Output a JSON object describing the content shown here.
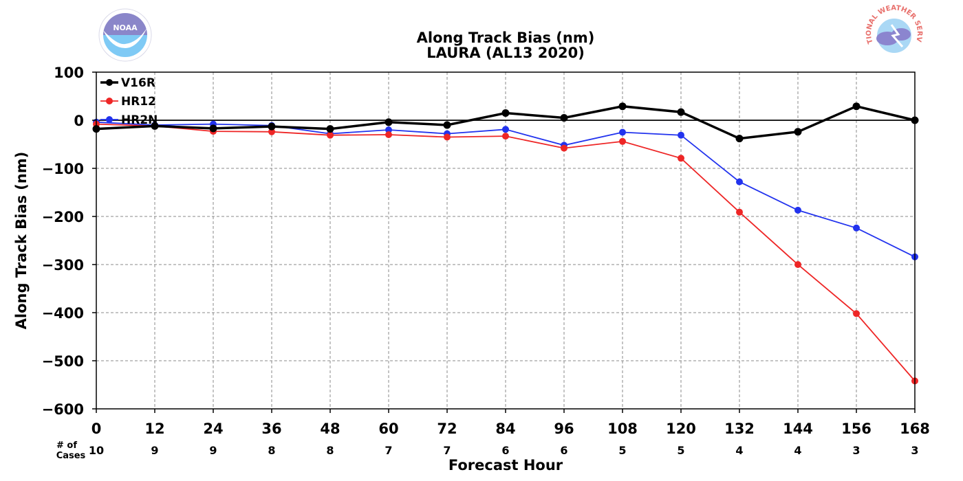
{
  "chart_data": {
    "type": "line",
    "title": "Along Track Bias (nm)",
    "subtitle": "LAURA (AL13 2020)",
    "xlabel": "Forecast Hour",
    "ylabel": "Along Track Bias (nm)",
    "x": [
      0,
      12,
      24,
      36,
      48,
      60,
      72,
      84,
      96,
      108,
      120,
      132,
      144,
      156,
      168
    ],
    "xlim": [
      0,
      168
    ],
    "ylim": [
      -600,
      100
    ],
    "yticks": [
      100,
      0,
      -100,
      -200,
      -300,
      -400,
      -500,
      -600
    ],
    "ytick_labels": [
      "100",
      "0",
      "−100",
      "−200",
      "−300",
      "−400",
      "−500",
      "−600"
    ],
    "grid": true,
    "legend_position": "top-left",
    "cases_label_line1": "# of",
    "cases_label_line2": "Cases",
    "cases": [
      10,
      9,
      9,
      8,
      8,
      7,
      7,
      6,
      6,
      5,
      5,
      4,
      4,
      3,
      3
    ],
    "series": [
      {
        "name": "V16R",
        "color": "#000000",
        "values": [
          -18,
          -12,
          -17,
          -13,
          -18,
          -4,
          -10,
          15,
          5,
          29,
          17,
          -38,
          -24,
          29,
          0
        ]
      },
      {
        "name": "HR12",
        "color": "#ee2626",
        "values": [
          -8,
          -12,
          -23,
          -24,
          -31,
          -30,
          -35,
          -33,
          -58,
          -44,
          -79,
          -191,
          -300,
          -402,
          -542
        ]
      },
      {
        "name": "HR2N",
        "color": "#2233ee",
        "values": [
          -4,
          -10,
          -8,
          -11,
          -28,
          -20,
          -28,
          -19,
          -52,
          -25,
          -31,
          -128,
          -187,
          -224,
          -284
        ]
      }
    ]
  },
  "logos": {
    "left": {
      "icon": "noaa-logo-icon",
      "text": "NOAA"
    },
    "right": {
      "icon": "nws-logo-icon",
      "text": "NATIONAL WEATHER SERVICE"
    }
  }
}
